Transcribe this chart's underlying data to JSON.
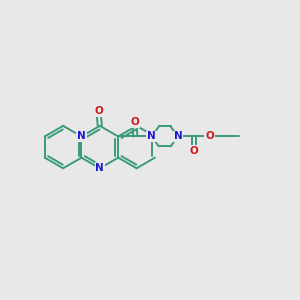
{
  "bg_color": "#e8e8e8",
  "bond_color": "#3a9a7a",
  "N_color": "#1a1acc",
  "O_color": "#cc1a1a",
  "bond_width": 1.4,
  "figsize": [
    3.0,
    3.0
  ],
  "dpi": 100,
  "xlim": [
    0.0,
    10.0
  ],
  "ylim": [
    3.0,
    8.0
  ]
}
